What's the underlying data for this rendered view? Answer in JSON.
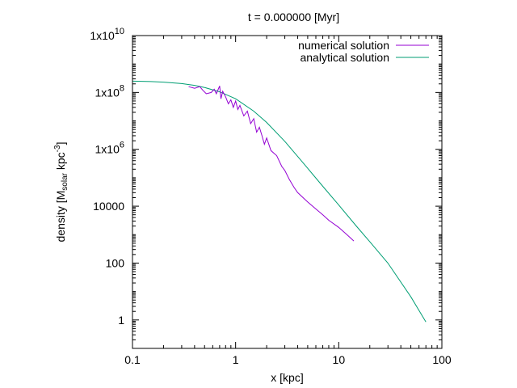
{
  "chart_data": {
    "type": "line",
    "title": "t = 0.000000 [Myr]",
    "xlabel": "x [kpc]",
    "ylabel": {
      "prefix": "density [M",
      "sub": "solar",
      "middle": " kpc",
      "sup": "-3",
      "suffix": "]"
    },
    "x_scale": "log",
    "y_scale": "log",
    "xlim": [
      0.1,
      100
    ],
    "ylim": [
      0.1,
      10000000000
    ],
    "x_ticks": [
      {
        "value": 0.1,
        "label": "0.1"
      },
      {
        "value": 1,
        "label": "1"
      },
      {
        "value": 10,
        "label": "10"
      },
      {
        "value": 100,
        "label": "100"
      }
    ],
    "y_ticks": [
      {
        "value": 1,
        "label": "1"
      },
      {
        "value": 100,
        "label": "100"
      },
      {
        "value": 10000,
        "label": "10000"
      },
      {
        "value": 1000000,
        "base": "1x10",
        "exp": "6"
      },
      {
        "value": 100000000,
        "base": "1x10",
        "exp": "8"
      },
      {
        "value": 10000000000,
        "base": "1x10",
        "exp": "10"
      }
    ],
    "legend_position": "top-right",
    "series": [
      {
        "name": "numerical solution",
        "color": "#9400d3",
        "x": [
          0.35,
          0.4,
          0.45,
          0.48,
          0.52,
          0.58,
          0.62,
          0.65,
          0.7,
          0.72,
          0.75,
          0.8,
          0.85,
          0.9,
          0.95,
          1.0,
          1.05,
          1.1,
          1.2,
          1.3,
          1.4,
          1.5,
          1.6,
          1.7,
          1.8,
          1.9,
          2.0,
          2.2,
          2.5,
          2.8,
          3.0,
          3.3,
          3.7,
          4.0,
          5.0,
          6.0,
          7.0,
          8.0,
          10.0,
          12.0,
          14.0
        ],
        "y": [
          160000000,
          140000000,
          160000000,
          120000000,
          90000000,
          100000000,
          130000000,
          90000000,
          170000000,
          60000000,
          110000000,
          70000000,
          40000000,
          55000000,
          30000000,
          50000000,
          25000000,
          35000000,
          15000000,
          22000000,
          8000000,
          12000000,
          4000000,
          6000000,
          3000000,
          1500000,
          2500000,
          900000,
          600000,
          250000,
          180000,
          90000,
          45000,
          30000,
          14000,
          8000,
          5000,
          3200,
          1800,
          1000,
          600
        ]
      },
      {
        "name": "analytical solution",
        "color": "#009e73",
        "x": [
          0.1,
          0.15,
          0.2,
          0.3,
          0.4,
          0.5,
          0.7,
          1.0,
          1.5,
          2.0,
          3.0,
          4.0,
          5.0,
          7.0,
          10.0,
          15.0,
          20.0,
          30.0,
          50.0,
          70.0
        ],
        "y": [
          250000000,
          242000000,
          230000000,
          205000000,
          178000000,
          150000000,
          105000000,
          60000000,
          22000000,
          8800000,
          1900000,
          560000,
          215000,
          50000,
          11000,
          1900,
          560,
          100,
          6.5,
          0.85
        ]
      }
    ]
  }
}
